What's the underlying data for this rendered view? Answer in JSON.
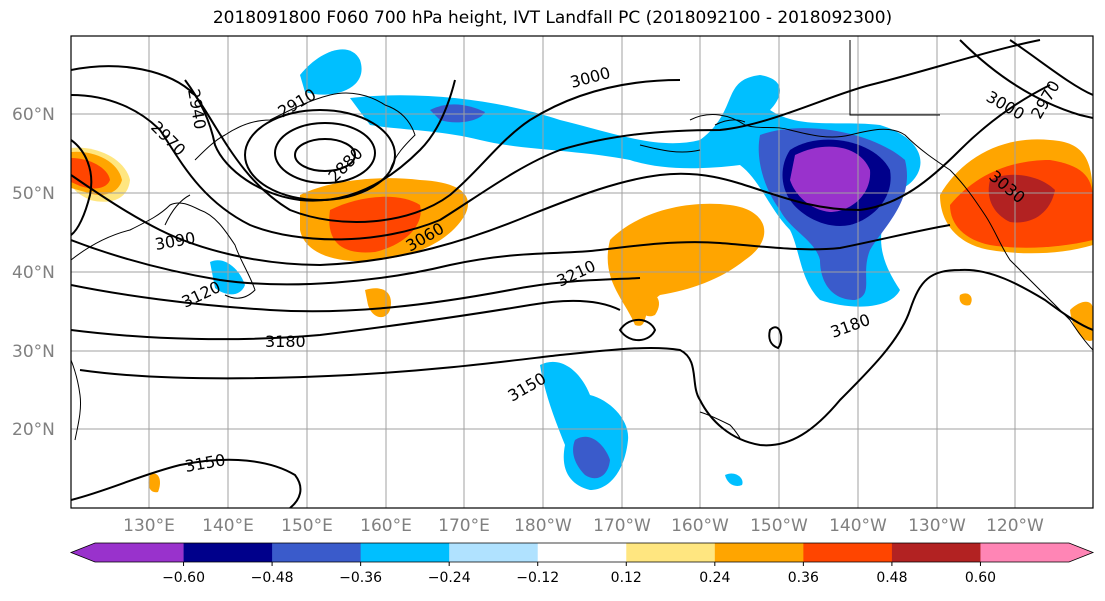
{
  "title": "2018091800 F060 700 hPa height, IVT Landfall PC (2018092100 - 2018092300)",
  "lat_labels": [
    "60°N",
    "50°N",
    "40°N",
    "30°N",
    "20°N"
  ],
  "lon_labels": [
    "130°E",
    "140°E",
    "150°E",
    "160°E",
    "170°E",
    "180°W",
    "170°W",
    "160°W",
    "150°W",
    "140°W",
    "130°W",
    "120°W"
  ],
  "colorbar": {
    "ticks": [
      "−0.60",
      "−0.48",
      "−0.36",
      "−0.24",
      "−0.12",
      "0.12",
      "0.24",
      "0.36",
      "0.48",
      "0.60"
    ],
    "colors": [
      "#9932CC",
      "#00008B",
      "#3A5BCB",
      "#00BFFF",
      "#B0E2FF",
      "#FFFFFF",
      "#FFE680",
      "#FFA500",
      "#FF4500",
      "#B22222",
      "#FF85B5"
    ]
  },
  "contour_labels": [
    "2940",
    "2970",
    "2910",
    "2880",
    "3000",
    "2970",
    "3000",
    "3030",
    "3060",
    "3090",
    "3120",
    "3180",
    "3210",
    "3180",
    "3150",
    "3150"
  ]
}
